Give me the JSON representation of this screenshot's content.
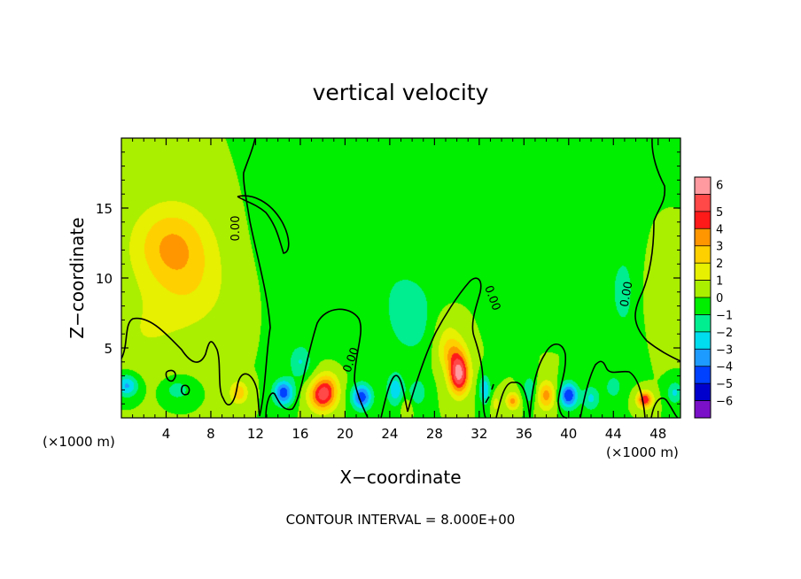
{
  "chart_data": {
    "type": "heatmap",
    "title": "vertical velocity",
    "xlabel": "X−coordinate",
    "ylabel": "Z−coordinate",
    "x_unit_left": "(×1000 m)",
    "x_unit_right": "(×1000 m)",
    "xlim": [
      0,
      50
    ],
    "ylim": [
      0,
      20
    ],
    "x_ticks": [
      4,
      8,
      12,
      16,
      20,
      24,
      28,
      32,
      36,
      40,
      44,
      48
    ],
    "x_tick_labels": [
      "4",
      "8",
      "12",
      "16",
      "20",
      "24",
      "28",
      "32",
      "36",
      "40",
      "44",
      "48"
    ],
    "y_ticks": [
      5,
      10,
      15
    ],
    "y_tick_labels": [
      "5",
      "10",
      "15"
    ],
    "colorbar": {
      "levels": [
        6,
        5,
        4,
        3,
        2,
        1,
        0,
        -1,
        -2,
        -3,
        -4,
        -5,
        -6
      ],
      "level_labels": [
        "6",
        "5",
        "4",
        "3",
        "2",
        "1",
        "0",
        "−1",
        "−2",
        "−3",
        "−4",
        "−5",
        "−6"
      ],
      "colors": [
        "#ff9aa0",
        "#ff4848",
        "#ff1a1a",
        "#ff9600",
        "#ffd000",
        "#e6f000",
        "#aaee00",
        "#00ee00",
        "#00ee90",
        "#00ddee",
        "#1e9bff",
        "#0040ff",
        "#0000cc",
        "#7a10c8"
      ]
    },
    "features": [
      {
        "x": 4.5,
        "z": 12.3,
        "w": 3.1,
        "sx": 3.5,
        "sz": 3.0
      },
      {
        "x": 6.5,
        "z": 9.0,
        "w": 1.2,
        "sx": 3.5,
        "sz": 3.0
      },
      {
        "x": 2.0,
        "z": 6.0,
        "w": 0.9,
        "sx": 4.0,
        "sz": 3.0
      },
      {
        "x": 22.0,
        "z": 11.0,
        "w": -0.9,
        "sx": 6.0,
        "sz": 5.0
      },
      {
        "x": 26.0,
        "z": 7.0,
        "w": -1.5,
        "sx": 2.0,
        "sz": 2.5
      },
      {
        "x": 45.0,
        "z": 9.0,
        "w": -1.3,
        "sx": 1.8,
        "sz": 4.0
      },
      {
        "x": 34.0,
        "z": 16.0,
        "w": -0.4,
        "sx": 8.0,
        "sz": 4.0
      },
      {
        "x": 48.0,
        "z": 9.0,
        "w": 0.9,
        "sx": 2.0,
        "sz": 3.0
      },
      {
        "x": 14.0,
        "z": 15.0,
        "w": -0.3,
        "sx": 2.0,
        "sz": 4.0
      },
      {
        "x": 0.5,
        "z": 2.3,
        "w": -3.3,
        "sx": 1.0,
        "sz": 0.8
      },
      {
        "x": 5.0,
        "z": 2.0,
        "w": -1.6,
        "sx": 1.2,
        "sz": 0.8
      },
      {
        "x": 10.5,
        "z": 1.8,
        "w": 2.8,
        "sx": 0.8,
        "sz": 0.8
      },
      {
        "x": 14.5,
        "z": 1.8,
        "w": -4.6,
        "sx": 0.9,
        "sz": 0.9
      },
      {
        "x": 16.0,
        "z": 4.0,
        "w": -2.0,
        "sx": 1.0,
        "sz": 1.2
      },
      {
        "x": 18.0,
        "z": 1.6,
        "w": 5.2,
        "sx": 1.2,
        "sz": 1.1
      },
      {
        "x": 18.5,
        "z": 2.5,
        "w": 1.5,
        "sx": 1.0,
        "sz": 1.0
      },
      {
        "x": 21.5,
        "z": 1.5,
        "w": -4.6,
        "sx": 0.9,
        "sz": 0.9
      },
      {
        "x": 24.5,
        "z": 2.0,
        "w": -2.6,
        "sx": 0.8,
        "sz": 1.2
      },
      {
        "x": 25.5,
        "z": 0.8,
        "w": 1.5,
        "sx": 0.5,
        "sz": 0.6
      },
      {
        "x": 26.5,
        "z": 1.8,
        "w": -1.8,
        "sx": 0.8,
        "sz": 1.0
      },
      {
        "x": 30.2,
        "z": 3.1,
        "w": 6.3,
        "sx": 0.9,
        "sz": 1.4
      },
      {
        "x": 29.5,
        "z": 4.7,
        "w": 2.5,
        "sx": 1.2,
        "sz": 1.3
      },
      {
        "x": 29.0,
        "z": 6.5,
        "w": 0.8,
        "sx": 1.5,
        "sz": 1.5
      },
      {
        "x": 32.5,
        "z": 2.0,
        "w": -3.0,
        "sx": 0.5,
        "sz": 1.0
      },
      {
        "x": 33.5,
        "z": 1.0,
        "w": 1.5,
        "sx": 0.4,
        "sz": 0.6
      },
      {
        "x": 35.0,
        "z": 1.2,
        "w": 3.4,
        "sx": 0.6,
        "sz": 0.6
      },
      {
        "x": 36.5,
        "z": 2.0,
        "w": -2.0,
        "sx": 0.6,
        "sz": 1.0
      },
      {
        "x": 38.0,
        "z": 1.6,
        "w": 3.4,
        "sx": 0.8,
        "sz": 1.0
      },
      {
        "x": 40.0,
        "z": 1.6,
        "w": -5.0,
        "sx": 0.8,
        "sz": 0.9
      },
      {
        "x": 42.0,
        "z": 1.4,
        "w": -2.2,
        "sx": 0.8,
        "sz": 0.9
      },
      {
        "x": 44.0,
        "z": 2.2,
        "w": -1.5,
        "sx": 0.8,
        "sz": 0.9
      },
      {
        "x": 46.8,
        "z": 1.3,
        "w": 5.0,
        "sx": 0.7,
        "sz": 0.6
      },
      {
        "x": 49.5,
        "z": 1.8,
        "w": -2.2,
        "sx": 0.7,
        "sz": 0.8
      }
    ],
    "zero_contour_labels": [
      "0.00",
      "0.00",
      "0.00",
      "0.00"
    ],
    "footer": "CONTOUR INTERVAL = 8.000E+00"
  }
}
